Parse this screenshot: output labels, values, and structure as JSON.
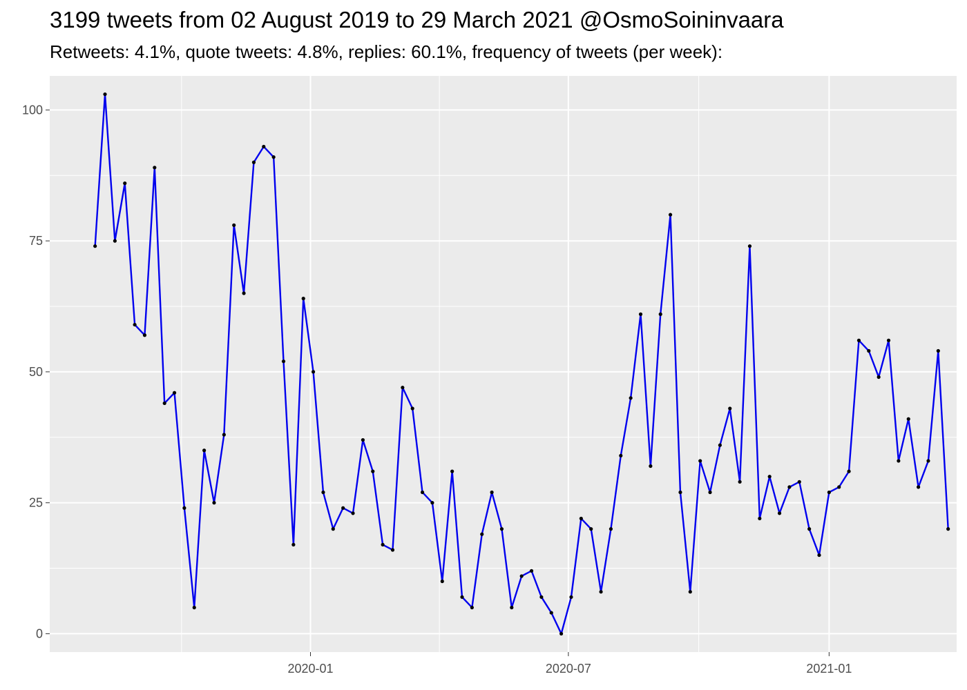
{
  "chart_data": {
    "type": "line",
    "title": "3199 tweets from 02 August 2019 to 29 March 2021 @OsmoSoininvaara",
    "subtitle": "Retweets: 4.1%, quote tweets: 4.8%, replies: 60.1%, frequency of tweets (per week):",
    "xlabel": "",
    "ylabel": "",
    "x_axis": {
      "type": "date",
      "range": [
        "2019-07-01",
        "2021-04-01"
      ],
      "ticks": [
        "2020-01-01",
        "2020-07-01",
        "2021-01-01"
      ],
      "tick_labels": [
        "2020-01",
        "2020-07",
        "2021-01"
      ]
    },
    "y_axis": {
      "range": [
        -3.5,
        106.5
      ],
      "ticks": [
        0,
        25,
        50,
        75,
        100
      ],
      "tick_labels": [
        "0",
        "25",
        "50",
        "75",
        "100"
      ]
    },
    "grid": true,
    "line_color": "#0000ee",
    "point_color": "#000000",
    "panel_background": "#ebebeb",
    "series": [
      {
        "x": [
          "2019-08-02",
          "2019-08-09",
          "2019-08-16",
          "2019-08-23",
          "2019-08-30",
          "2019-09-06",
          "2019-09-13",
          "2019-09-20",
          "2019-09-27",
          "2019-10-04",
          "2019-10-11",
          "2019-10-18",
          "2019-10-25",
          "2019-11-01",
          "2019-11-08",
          "2019-11-15",
          "2019-11-22",
          "2019-11-29",
          "2019-12-06",
          "2019-12-13",
          "2019-12-20",
          "2019-12-27",
          "2020-01-03",
          "2020-01-10",
          "2020-01-17",
          "2020-01-24",
          "2020-01-31",
          "2020-02-07",
          "2020-02-14",
          "2020-02-21",
          "2020-02-28",
          "2020-03-06",
          "2020-03-13",
          "2020-03-20",
          "2020-03-27",
          "2020-04-03",
          "2020-04-10",
          "2020-04-17",
          "2020-04-24",
          "2020-05-01",
          "2020-05-08",
          "2020-05-15",
          "2020-05-22",
          "2020-05-29",
          "2020-06-05",
          "2020-06-12",
          "2020-06-19",
          "2020-06-26",
          "2020-07-03",
          "2020-07-10",
          "2020-07-17",
          "2020-07-24",
          "2020-07-31",
          "2020-08-07",
          "2020-08-14",
          "2020-08-21",
          "2020-08-28",
          "2020-09-04",
          "2020-09-11",
          "2020-09-18",
          "2020-09-25",
          "2020-10-02",
          "2020-10-09",
          "2020-10-16",
          "2020-10-23",
          "2020-10-30",
          "2020-11-06",
          "2020-11-13",
          "2020-11-20",
          "2020-11-27",
          "2020-12-04",
          "2020-12-11",
          "2020-12-18",
          "2020-12-25",
          "2021-01-01",
          "2021-01-08",
          "2021-01-15",
          "2021-01-22",
          "2021-01-29",
          "2021-02-05",
          "2021-02-12",
          "2021-02-19",
          "2021-02-26",
          "2021-03-05",
          "2021-03-12",
          "2021-03-19",
          "2021-03-26"
        ],
        "y": [
          74,
          103,
          75,
          86,
          59,
          57,
          89,
          44,
          46,
          24,
          5,
          35,
          25,
          38,
          78,
          65,
          90,
          93,
          91,
          52,
          17,
          64,
          50,
          27,
          20,
          24,
          23,
          37,
          31,
          17,
          16,
          47,
          43,
          27,
          25,
          10,
          31,
          7,
          5,
          19,
          27,
          20,
          5,
          11,
          12,
          7,
          4,
          0,
          7,
          22,
          20,
          8,
          20,
          34,
          45,
          61,
          32,
          61,
          80,
          27,
          8,
          33,
          27,
          36,
          43,
          29,
          74,
          22,
          30,
          23,
          28,
          29,
          20,
          15,
          27,
          28,
          31,
          56,
          54,
          49,
          56,
          33,
          41,
          28,
          33,
          54,
          20
        ]
      }
    ]
  }
}
